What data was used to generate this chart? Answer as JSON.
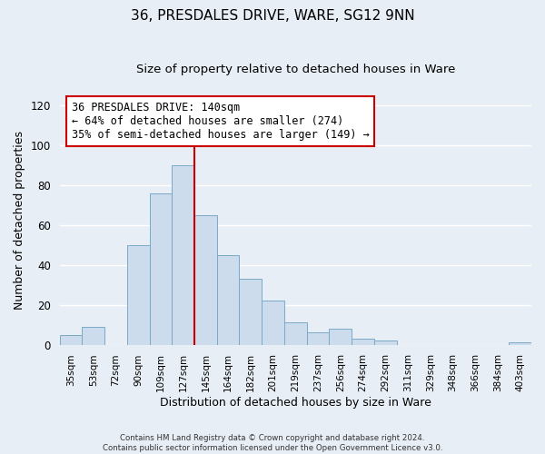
{
  "title": "36, PRESDALES DRIVE, WARE, SG12 9NN",
  "subtitle": "Size of property relative to detached houses in Ware",
  "xlabel": "Distribution of detached houses by size in Ware",
  "ylabel": "Number of detached properties",
  "bar_color": "#cddcec",
  "bar_edge_color": "#7aaac8",
  "categories": [
    "35sqm",
    "53sqm",
    "72sqm",
    "90sqm",
    "109sqm",
    "127sqm",
    "145sqm",
    "164sqm",
    "182sqm",
    "201sqm",
    "219sqm",
    "237sqm",
    "256sqm",
    "274sqm",
    "292sqm",
    "311sqm",
    "329sqm",
    "348sqm",
    "366sqm",
    "384sqm",
    "403sqm"
  ],
  "values": [
    5,
    9,
    0,
    50,
    76,
    90,
    65,
    45,
    33,
    22,
    11,
    6,
    8,
    3,
    2,
    0,
    0,
    0,
    0,
    0,
    1
  ],
  "ylim": [
    0,
    125
  ],
  "yticks": [
    0,
    20,
    40,
    60,
    80,
    100,
    120
  ],
  "vline_color": "#cc0000",
  "annotation_title": "36 PRESDALES DRIVE: 140sqm",
  "annotation_line1": "← 64% of detached houses are smaller (274)",
  "annotation_line2": "35% of semi-detached houses are larger (149) →",
  "annotation_box_color": "#ffffff",
  "annotation_box_edge": "#cc0000",
  "footer1": "Contains HM Land Registry data © Crown copyright and database right 2024.",
  "footer2": "Contains public sector information licensed under the Open Government Licence v3.0.",
  "background_color": "#e8eef5",
  "grid_color": "#ffffff",
  "title_fontsize": 11,
  "subtitle_fontsize": 9.5,
  "axis_fontsize": 9
}
